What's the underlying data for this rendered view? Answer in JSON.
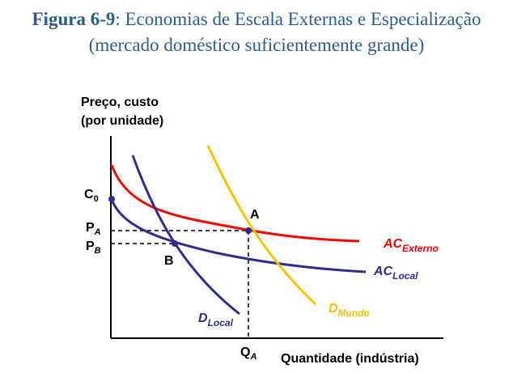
{
  "title": {
    "figure_number": "Figura 6-9",
    "separator": ": ",
    "line1_text": "Economias de Escala Externas e Especialização",
    "line2": "(mercado doméstico suficientemente grande)"
  },
  "axes": {
    "y_label_line1": "Preço, custo",
    "y_label_line2": "(por unidade)",
    "x_label": "Quantidade (indústria)"
  },
  "labels": {
    "c0_main": "C",
    "c0_sub": "0",
    "pa_main": "P",
    "pa_sub": "A",
    "pb_main": "P",
    "pb_sub": "B",
    "qa_main": "Q",
    "qa_sub": "A",
    "point_a": "A",
    "point_b": "B"
  },
  "curves": {
    "ac_externo_main": "AC",
    "ac_externo_sub": "Externo",
    "ac_local_main": "AC",
    "ac_local_sub": "Local",
    "d_mundo_main": "D",
    "d_mundo_sub": "Mundo",
    "d_local_main": "D",
    "d_local_sub": "Local"
  },
  "colors": {
    "ac_externo": "#ff0000",
    "ac_local": "#2e2e8f",
    "d_mundo": "#ffc000",
    "d_local": "#2e2e8f",
    "title": "#2f5d8a",
    "axis": "#000000"
  }
}
